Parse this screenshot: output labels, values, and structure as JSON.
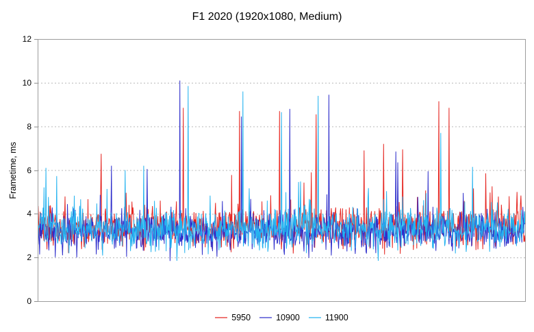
{
  "chart_data": {
    "type": "line",
    "title": "F1 2020 (1920x1080, Medium)",
    "xlabel": "",
    "ylabel": "Frametime, ms",
    "ylim": [
      0,
      12
    ],
    "yticks": [
      0,
      2,
      4,
      6,
      8,
      10,
      12
    ],
    "x_axis_tick_labels": "none",
    "grid": "horizontal-dashed",
    "legend_position": "bottom-center",
    "points_per_series": 1000,
    "series": [
      {
        "name": "5950",
        "color": "#e52520",
        "seed": 101,
        "noise": {
          "mean": 3.4,
          "amp": 0.72,
          "spike_prob": 0.09,
          "spike_extra": 1.6,
          "dip_prob": 0.05,
          "dip": 0.85,
          "min": 1.95,
          "max": 6.3
        },
        "spikes": [
          {
            "x": 0.1304,
            "v": 6.75
          },
          {
            "x": 0.2987,
            "v": 8.85
          },
          {
            "x": 0.4137,
            "v": 8.7
          },
          {
            "x": 0.4951,
            "v": 8.7
          },
          {
            "x": 0.561,
            "v": 5.9
          },
          {
            "x": 0.5708,
            "v": 8.55
          },
          {
            "x": 0.669,
            "v": 6.9
          },
          {
            "x": 0.7083,
            "v": 7.2
          },
          {
            "x": 0.7476,
            "v": 6.95
          },
          {
            "x": 0.8219,
            "v": 9.15
          },
          {
            "x": 0.843,
            "v": 8.85
          },
          {
            "x": 0.9818,
            "v": 5.0
          }
        ]
      },
      {
        "name": "10900",
        "color": "#2e2ecb",
        "seed": 202,
        "noise": {
          "mean": 3.2,
          "amp": 0.7,
          "spike_prob": 0.07,
          "spike_extra": 1.4,
          "dip_prob": 0.07,
          "dip": 1.0,
          "min": 1.6,
          "max": 6.3
        },
        "spikes": [
          {
            "x": 0.1515,
            "v": 6.2
          },
          {
            "x": 0.2244,
            "v": 6.05
          },
          {
            "x": 0.2917,
            "v": 10.1
          },
          {
            "x": 0.4179,
            "v": 8.45
          },
          {
            "x": 0.5161,
            "v": 8.8
          },
          {
            "x": 0.5961,
            "v": 9.45
          },
          {
            "x": 0.7335,
            "v": 6.85
          },
          {
            "x": 0.7378,
            "v": 6.35
          },
          {
            "x": 0.7995,
            "v": 5.95
          }
        ]
      },
      {
        "name": "11900",
        "color": "#24b3f0",
        "seed": 303,
        "noise": {
          "mean": 3.3,
          "amp": 0.7,
          "spike_prob": 0.08,
          "spike_extra": 1.5,
          "dip_prob": 0.05,
          "dip": 0.9,
          "min": 1.85,
          "max": 6.3
        },
        "spikes": [
          {
            "x": 0.017,
            "v": 6.1
          },
          {
            "x": 0.1795,
            "v": 6.0
          },
          {
            "x": 0.2174,
            "v": 6.2
          },
          {
            "x": 0.3085,
            "v": 9.85
          },
          {
            "x": 0.4208,
            "v": 9.6
          },
          {
            "x": 0.4993,
            "v": 8.65
          },
          {
            "x": 0.575,
            "v": 9.4
          },
          {
            "x": 0.8261,
            "v": 7.7
          },
          {
            "x": 0.8906,
            "v": 6.15
          }
        ]
      }
    ],
    "colors": {
      "axis_border": "#9c9c9c",
      "gridline": "#b8b8b8",
      "tick_mark": "#8e8e8e",
      "text": "#000000",
      "background": "#ffffff"
    }
  }
}
